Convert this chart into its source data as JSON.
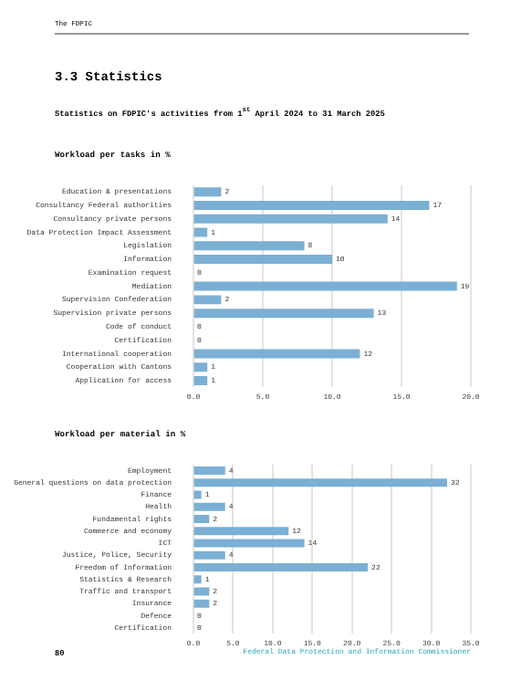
{
  "chart_data": [
    {
      "type": "bar",
      "orientation": "horizontal",
      "title": "Workload per tasks in %",
      "annotations": [
        "The FDPIC",
        "3.3 Statistics",
        "Statistics on FDPIC's activities from 1$^{st}$ April 2024 to 31 March 2025"
      ],
      "categories": [
        "Education & presentations",
        "Consultancy Federal authorities",
        "Consultancy private persons",
        "Data Protection Impact Assessment",
        "Legislation",
        "Information",
        "Examination request",
        "Mediation",
        "Supervision Confederation",
        "Supervision private persons",
        "Code of conduct",
        "Certification",
        "International cooperation",
        "Cooperation with Cantons",
        "Application for access"
      ],
      "values": [
        2,
        17,
        14,
        1,
        8,
        10,
        0,
        19,
        2,
        13,
        0,
        0,
        12,
        1,
        1
      ],
      "color": "#7bafd4",
      "data_labels": true,
      "grid": "x",
      "xlim": [
        0,
        20
      ],
      "xticks": [
        {
          "value": 0,
          "label": "0.0"
        },
        {
          "value": 5,
          "label": "5.0"
        },
        {
          "value": 10,
          "label": "10.0"
        },
        {
          "value": 15,
          "label": "15.0"
        },
        {
          "value": 20,
          "label": "20.0"
        }
      ]
    },
    {
      "type": "bar",
      "orientation": "horizontal",
      "title": "Workload per material in %",
      "annotations": [
        "80",
        "Federal Data Protection and Information Commissioner"
      ],
      "categories": [
        "Employment",
        "General questions on data protection",
        "Finance",
        "Health",
        "Fundamental rights",
        "Commerce and economy",
        "ICT",
        "Justice, Police, Security",
        "Freedom of Information",
        "Statistics & Research",
        "Traffic and transport",
        "Insurance",
        "Defence",
        "Certification"
      ],
      "values": [
        4,
        32,
        1,
        4,
        2,
        12,
        14,
        4,
        22,
        1,
        2,
        2,
        0,
        0
      ],
      "color": "#7bafd4",
      "data_labels": true,
      "grid": "x",
      "xlim": [
        0,
        35
      ],
      "xticks": [
        {
          "value": 0,
          "label": "0.0"
        },
        {
          "value": 5,
          "label": "5.0"
        },
        {
          "value": 10,
          "label": "10.0"
        },
        {
          "value": 15,
          "label": "15.0"
        },
        {
          "value": 20,
          "label": "20.0"
        },
        {
          "value": 25,
          "label": "25.0"
        },
        {
          "value": 30,
          "label": "30.0"
        },
        {
          "value": 35,
          "label": "35.0"
        }
      ]
    }
  ]
}
